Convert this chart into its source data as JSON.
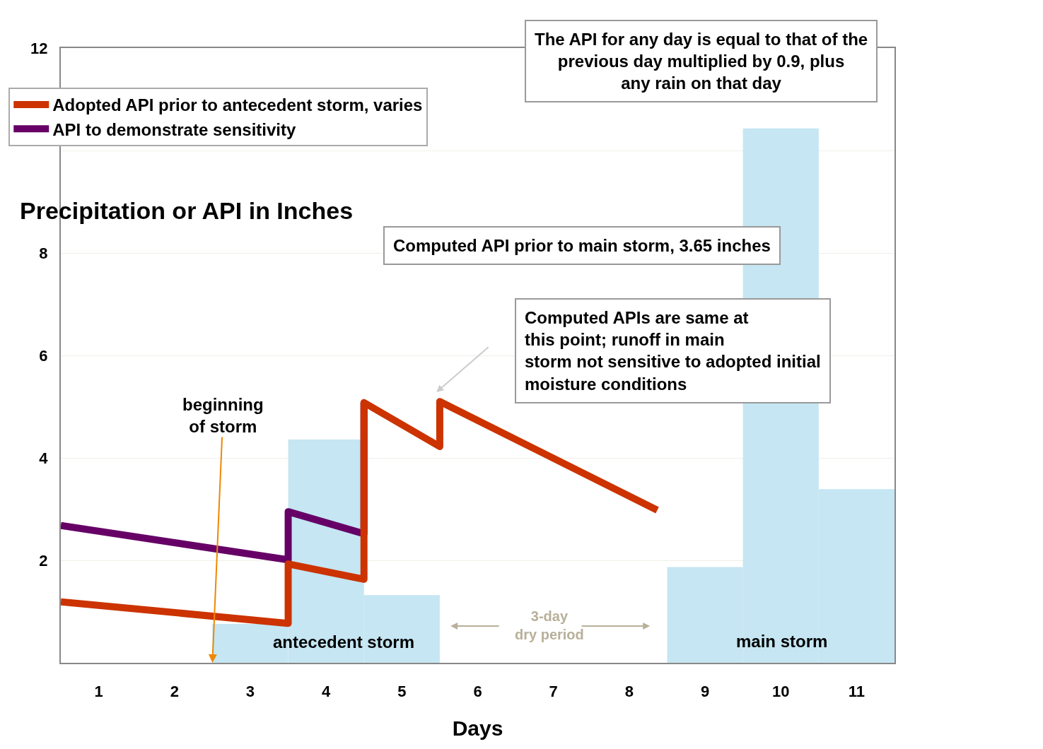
{
  "chart_data": {
    "type": "bar",
    "xlabel": "Days",
    "ylabel": "Precipitation or API in Inches",
    "xlim": [
      0.5,
      11.5
    ],
    "xticks": [
      1,
      2,
      3,
      4,
      5,
      6,
      7,
      8,
      9,
      10,
      11
    ],
    "ylim": [
      0,
      12
    ],
    "yticks": [
      2,
      4,
      6,
      8,
      {
        "value": 10,
        "label": null
      },
      12
    ],
    "grid": "y",
    "legend": "top left",
    "annotations": [
      "The API for any day is equal to that of the\nprevious day multiplied by 0.9, plus\nany rain on that day",
      "Computed API prior to main storm, 3.65 inches",
      "Computed APIs are same at\nthis point; runoff in main\nstorm not sensitive to adopted initial\nmoisture conditions",
      {
        "text": "beginning\nof storm",
        "x": 2.5,
        "y": 0
      },
      "antecedent storm",
      "main storm",
      "3-day\ndry period"
    ],
    "series": [
      {
        "color": "#c5e6f2",
        "x": [
          3,
          4,
          5,
          9,
          10,
          11
        ],
        "values": [
          0.76,
          4.36,
          1.32,
          1.87,
          10.43,
          3.39
        ]
      },
      {
        "type": "line",
        "name": "API to demonstrate sensitivity",
        "color": "#660066",
        "x": [
          0.5,
          3.5,
          3.5,
          4.5,
          4.5
        ],
        "values": [
          2.68,
          2.01,
          2.95,
          2.52,
          5.08
        ]
      },
      {
        "type": "line",
        "name": "Adopted API prior to antecedent storm, varies",
        "color": "#cc3300",
        "x": [
          0.5,
          3.5,
          3.5,
          4.5,
          4.5,
          5.5,
          5.5,
          8.37
        ],
        "values": [
          1.19,
          0.77,
          1.93,
          1.63,
          5.08,
          4.22,
          5.1,
          2.98
        ]
      }
    ]
  }
}
